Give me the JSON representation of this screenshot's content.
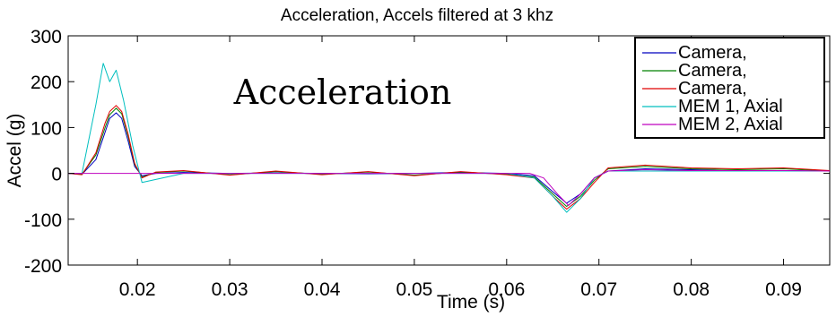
{
  "chart_data": {
    "type": "line",
    "title": "Acceleration, Accels filtered at 3 khz",
    "xlabel": "Time (s)",
    "ylabel": "Accel (g)",
    "annotation": "Acceleration",
    "xlim": [
      0.0125,
      0.095
    ],
    "ylim": [
      -200,
      300
    ],
    "xticks": [
      0.02,
      0.03,
      0.04,
      0.05,
      0.06,
      0.07,
      0.08,
      0.09
    ],
    "xtick_labels": [
      "0.02",
      "0.03",
      "0.04",
      "0.05",
      "0.06",
      "0.07",
      "0.08",
      "0.09"
    ],
    "yticks": [
      -200,
      -100,
      0,
      100,
      200,
      300
    ],
    "ytick_labels": [
      "-200",
      "-100",
      "0",
      "100",
      "200",
      "300"
    ],
    "grid": false,
    "legend_position": "top-right",
    "series": [
      {
        "name": "Camera,",
        "color": "#0000bf",
        "points": [
          [
            0.0125,
            0
          ],
          [
            0.014,
            -2
          ],
          [
            0.0155,
            30
          ],
          [
            0.0165,
            90
          ],
          [
            0.017,
            120
          ],
          [
            0.0177,
            132
          ],
          [
            0.0183,
            120
          ],
          [
            0.019,
            70
          ],
          [
            0.0197,
            15
          ],
          [
            0.0205,
            -5
          ],
          [
            0.022,
            0
          ],
          [
            0.025,
            2
          ],
          [
            0.03,
            0
          ],
          [
            0.035,
            1
          ],
          [
            0.04,
            0
          ],
          [
            0.045,
            -1
          ],
          [
            0.05,
            0
          ],
          [
            0.055,
            2
          ],
          [
            0.06,
            0
          ],
          [
            0.063,
            -5
          ],
          [
            0.065,
            -40
          ],
          [
            0.0665,
            -65
          ],
          [
            0.068,
            -45
          ],
          [
            0.0695,
            -10
          ],
          [
            0.071,
            5
          ],
          [
            0.075,
            10
          ],
          [
            0.08,
            8
          ],
          [
            0.085,
            5
          ],
          [
            0.09,
            6
          ],
          [
            0.095,
            5
          ]
        ]
      },
      {
        "name": "Camera,",
        "color": "#008000",
        "points": [
          [
            0.0125,
            0
          ],
          [
            0.014,
            -2
          ],
          [
            0.0155,
            40
          ],
          [
            0.0165,
            100
          ],
          [
            0.017,
            128
          ],
          [
            0.0177,
            142
          ],
          [
            0.0183,
            130
          ],
          [
            0.019,
            80
          ],
          [
            0.0197,
            20
          ],
          [
            0.0205,
            -8
          ],
          [
            0.022,
            2
          ],
          [
            0.025,
            5
          ],
          [
            0.03,
            -3
          ],
          [
            0.035,
            4
          ],
          [
            0.04,
            -2
          ],
          [
            0.045,
            3
          ],
          [
            0.05,
            -4
          ],
          [
            0.055,
            3
          ],
          [
            0.06,
            -2
          ],
          [
            0.063,
            -8
          ],
          [
            0.065,
            -45
          ],
          [
            0.0665,
            -72
          ],
          [
            0.068,
            -50
          ],
          [
            0.0695,
            -15
          ],
          [
            0.071,
            10
          ],
          [
            0.075,
            15
          ],
          [
            0.08,
            10
          ],
          [
            0.085,
            8
          ],
          [
            0.09,
            10
          ],
          [
            0.095,
            5
          ]
        ]
      },
      {
        "name": "Camera,",
        "color": "#e00000",
        "points": [
          [
            0.0125,
            0
          ],
          [
            0.014,
            -3
          ],
          [
            0.0155,
            45
          ],
          [
            0.0165,
            110
          ],
          [
            0.017,
            135
          ],
          [
            0.0177,
            148
          ],
          [
            0.0183,
            135
          ],
          [
            0.019,
            85
          ],
          [
            0.0197,
            22
          ],
          [
            0.0205,
            -10
          ],
          [
            0.022,
            3
          ],
          [
            0.025,
            6
          ],
          [
            0.03,
            -4
          ],
          [
            0.035,
            5
          ],
          [
            0.04,
            -3
          ],
          [
            0.045,
            4
          ],
          [
            0.05,
            -5
          ],
          [
            0.055,
            4
          ],
          [
            0.06,
            -3
          ],
          [
            0.063,
            -10
          ],
          [
            0.065,
            -50
          ],
          [
            0.0665,
            -78
          ],
          [
            0.068,
            -55
          ],
          [
            0.0695,
            -20
          ],
          [
            0.071,
            12
          ],
          [
            0.075,
            18
          ],
          [
            0.08,
            12
          ],
          [
            0.085,
            10
          ],
          [
            0.09,
            12
          ],
          [
            0.095,
            6
          ]
        ]
      },
      {
        "name": "MEM 1, Axial",
        "color": "#00bfbf",
        "points": [
          [
            0.0125,
            0
          ],
          [
            0.014,
            0
          ],
          [
            0.0155,
            150
          ],
          [
            0.0163,
            240
          ],
          [
            0.017,
            200
          ],
          [
            0.0177,
            225
          ],
          [
            0.0185,
            160
          ],
          [
            0.0195,
            60
          ],
          [
            0.0205,
            -20
          ],
          [
            0.025,
            0
          ],
          [
            0.03,
            0
          ],
          [
            0.035,
            0
          ],
          [
            0.04,
            0
          ],
          [
            0.045,
            0
          ],
          [
            0.05,
            0
          ],
          [
            0.055,
            0
          ],
          [
            0.06,
            0
          ],
          [
            0.063,
            -10
          ],
          [
            0.065,
            -50
          ],
          [
            0.0665,
            -85
          ],
          [
            0.068,
            -55
          ],
          [
            0.0695,
            -10
          ],
          [
            0.071,
            5
          ],
          [
            0.075,
            5
          ],
          [
            0.08,
            5
          ],
          [
            0.085,
            5
          ],
          [
            0.09,
            5
          ],
          [
            0.095,
            5
          ]
        ]
      },
      {
        "name": "MEM 2, Axial",
        "color": "#bf00bf",
        "points": [
          [
            0.0125,
            0
          ],
          [
            0.03,
            0
          ],
          [
            0.05,
            0
          ],
          [
            0.0625,
            0
          ],
          [
            0.064,
            -10
          ],
          [
            0.0655,
            -45
          ],
          [
            0.0667,
            -70
          ],
          [
            0.068,
            -45
          ],
          [
            0.0695,
            -10
          ],
          [
            0.071,
            5
          ],
          [
            0.075,
            8
          ],
          [
            0.08,
            6
          ],
          [
            0.085,
            6
          ],
          [
            0.09,
            6
          ],
          [
            0.095,
            5
          ]
        ]
      }
    ]
  }
}
